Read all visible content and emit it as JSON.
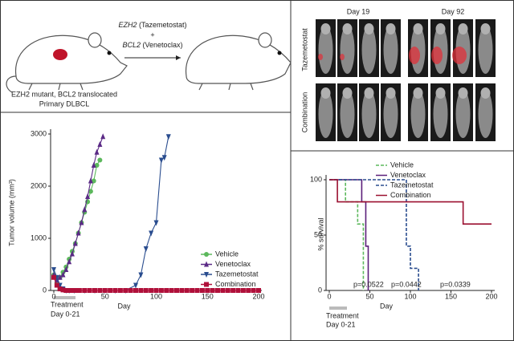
{
  "schematic": {
    "drug1_gene": "EZH2",
    "drug1_name": "(Tazemetostat)",
    "plus": "+",
    "drug2_gene": "BCL2",
    "drug2_name": "(Venetoclax)",
    "model_line1": "EZH2 mutant, BCL2 translocated",
    "model_line2": "Primary DLBCL"
  },
  "imaging": {
    "day_labels": [
      "Day 19",
      "Day 92"
    ],
    "row_labels": [
      "Tazemetostat",
      "Combination"
    ]
  },
  "chart_data": [
    {
      "type": "line",
      "ylabel": "Tumor volume (mm³)",
      "xlabel": "Day",
      "treatment": [
        "Treatment",
        "Day 0-21"
      ],
      "xlim": [
        0,
        200
      ],
      "xticks": [
        0,
        50,
        100,
        150,
        200
      ],
      "ylim": [
        0,
        3000
      ],
      "yticks": [
        0,
        1000,
        2000,
        3000
      ],
      "series": [
        {
          "name": "Vehicle",
          "color": "#5cb85c",
          "marker": "circle",
          "x": [
            0,
            3,
            6,
            9,
            12,
            15,
            18,
            21,
            24,
            27,
            30,
            33,
            36,
            39,
            42,
            45
          ],
          "values": [
            300,
            150,
            250,
            350,
            450,
            600,
            750,
            900,
            1100,
            1300,
            1500,
            1700,
            1900,
            2100,
            2400,
            2500
          ]
        },
        {
          "name": "Venetoclax",
          "color": "#5b2a86",
          "marker": "triangle",
          "x": [
            0,
            3,
            6,
            9,
            12,
            15,
            18,
            21,
            24,
            27,
            30,
            33,
            36,
            39,
            42,
            45,
            48
          ],
          "values": [
            300,
            200,
            250,
            300,
            400,
            550,
            700,
            900,
            1100,
            1300,
            1550,
            1800,
            2100,
            2400,
            2650,
            2800,
            2950
          ]
        },
        {
          "name": "Tazemetostat",
          "color": "#2a4d8f",
          "marker": "triangle-down",
          "x": [
            0,
            3,
            6,
            9,
            12,
            15,
            20,
            30,
            40,
            50,
            60,
            70,
            80,
            85,
            90,
            95,
            100,
            105,
            108,
            112
          ],
          "values": [
            400,
            250,
            100,
            30,
            0,
            0,
            0,
            0,
            0,
            0,
            0,
            0,
            100,
            300,
            800,
            1100,
            1300,
            2500,
            2550,
            2950
          ]
        },
        {
          "name": "Combination",
          "color": "#b0103a",
          "marker": "square",
          "x": [
            0,
            3,
            6,
            9,
            12,
            15,
            18,
            21,
            25,
            30,
            35,
            40,
            45,
            50,
            55,
            60,
            65,
            70,
            75,
            80,
            85,
            90,
            95,
            100,
            105,
            110,
            115,
            120,
            125,
            130,
            135,
            140,
            145,
            150,
            155,
            160,
            165,
            170,
            175,
            180,
            185,
            190,
            195,
            200
          ],
          "values": [
            250,
            100,
            30,
            10,
            0,
            0,
            0,
            0,
            0,
            0,
            0,
            0,
            0,
            0,
            0,
            0,
            0,
            0,
            0,
            0,
            0,
            0,
            0,
            0,
            0,
            0,
            0,
            0,
            0,
            0,
            0,
            0,
            0,
            0,
            0,
            0,
            0,
            0,
            0,
            0,
            0,
            0,
            0,
            0
          ]
        }
      ]
    },
    {
      "type": "step",
      "ylabel": "% survival",
      "xlabel": "Day",
      "treatment": [
        "Treatment",
        "Day 0-21"
      ],
      "xlim": [
        0,
        200
      ],
      "xticks": [
        0,
        50,
        100,
        150,
        200
      ],
      "ylim": [
        0,
        100
      ],
      "yticks": [
        0,
        50,
        100
      ],
      "series": [
        {
          "name": "Vehicle",
          "color": "#5cb85c",
          "dash": true,
          "x": [
            0,
            20,
            20,
            35,
            35,
            42,
            42
          ],
          "values": [
            100,
            100,
            80,
            80,
            60,
            60,
            0
          ]
        },
        {
          "name": "Venetoclax",
          "color": "#5b1f7a",
          "dash": false,
          "x": [
            0,
            40,
            40,
            45,
            45,
            48,
            48
          ],
          "values": [
            100,
            100,
            80,
            80,
            40,
            40,
            0
          ]
        },
        {
          "name": "Tazemetostat",
          "color": "#2a4d8f",
          "dash": true,
          "x": [
            0,
            95,
            95,
            100,
            100,
            110,
            110
          ],
          "values": [
            100,
            100,
            40,
            40,
            20,
            20,
            0
          ]
        },
        {
          "name": "Combination",
          "color": "#9b1030",
          "dash": false,
          "x": [
            0,
            10,
            10,
            165,
            165,
            200
          ],
          "values": [
            100,
            100,
            80,
            80,
            60,
            60
          ]
        }
      ],
      "annotations": [
        {
          "text": "p=0.0522",
          "color": "#5cb85c"
        },
        {
          "text": "p=0.0442",
          "color": "#5b1f7a"
        },
        {
          "text": "p=0.0339",
          "color": "#2a4d8f"
        }
      ]
    }
  ]
}
